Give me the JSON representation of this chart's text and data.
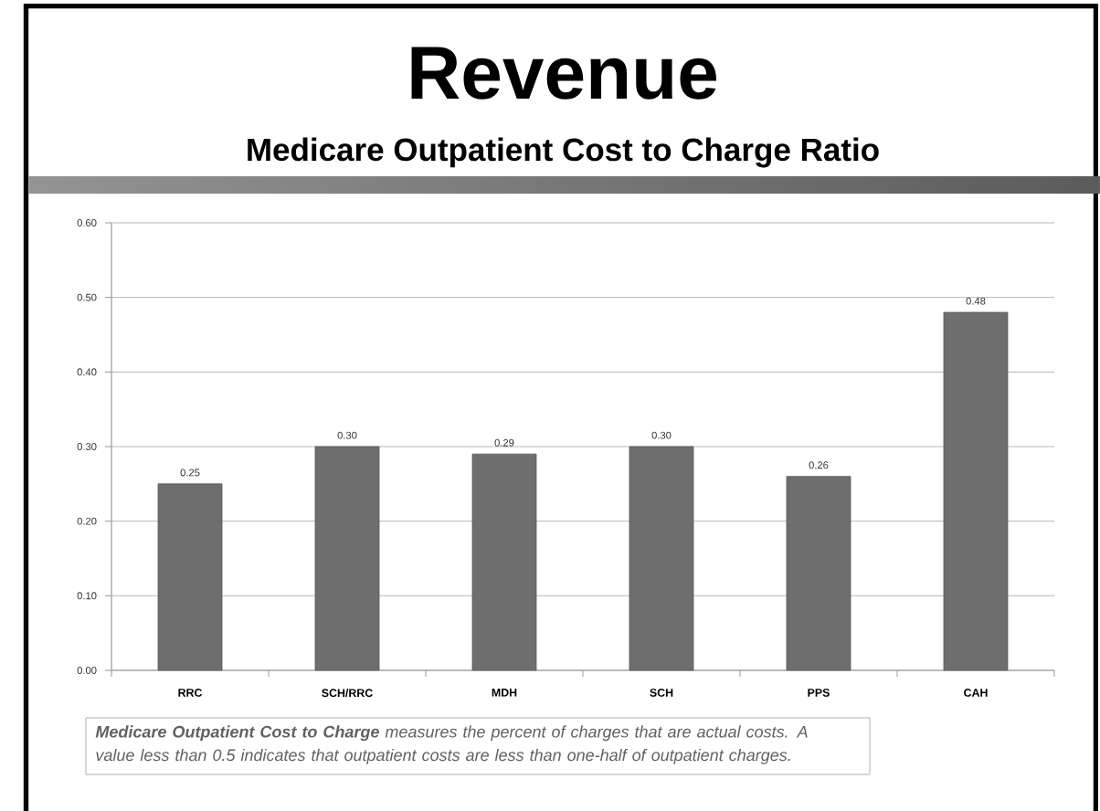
{
  "chart_data": {
    "type": "bar",
    "title": "Revenue",
    "subtitle": "Medicare Outpatient Cost to Charge Ratio",
    "categories": [
      "RRC",
      "SCH/RRC",
      "MDH",
      "SCH",
      "PPS",
      "CAH"
    ],
    "values": [
      0.25,
      0.3,
      0.29,
      0.3,
      0.26,
      0.48
    ],
    "value_labels": [
      "0.25",
      "0.30",
      "0.29",
      "0.30",
      "0.26",
      "0.48"
    ],
    "color": "#6e6e6e",
    "ylim": [
      0,
      0.6
    ],
    "yticks": [
      {
        "value": 0,
        "label": "0.00"
      },
      {
        "value": 0.1,
        "label": "0.10"
      },
      {
        "value": 0.2,
        "label": "0.20"
      },
      {
        "value": 0.3,
        "label": "0.30"
      },
      {
        "value": 0.4,
        "label": "0.40"
      },
      {
        "value": 0.5,
        "label": "0.50"
      },
      {
        "value": 0.6,
        "label": "0.60"
      }
    ],
    "grid": "y",
    "annotations": [
      "**Medicare Outpatient Cost to Charge** measures the percent of charges that are actual costs. A value less than 0.5 indicates that outpatient costs are less than one-half of outpatient charges."
    ]
  }
}
